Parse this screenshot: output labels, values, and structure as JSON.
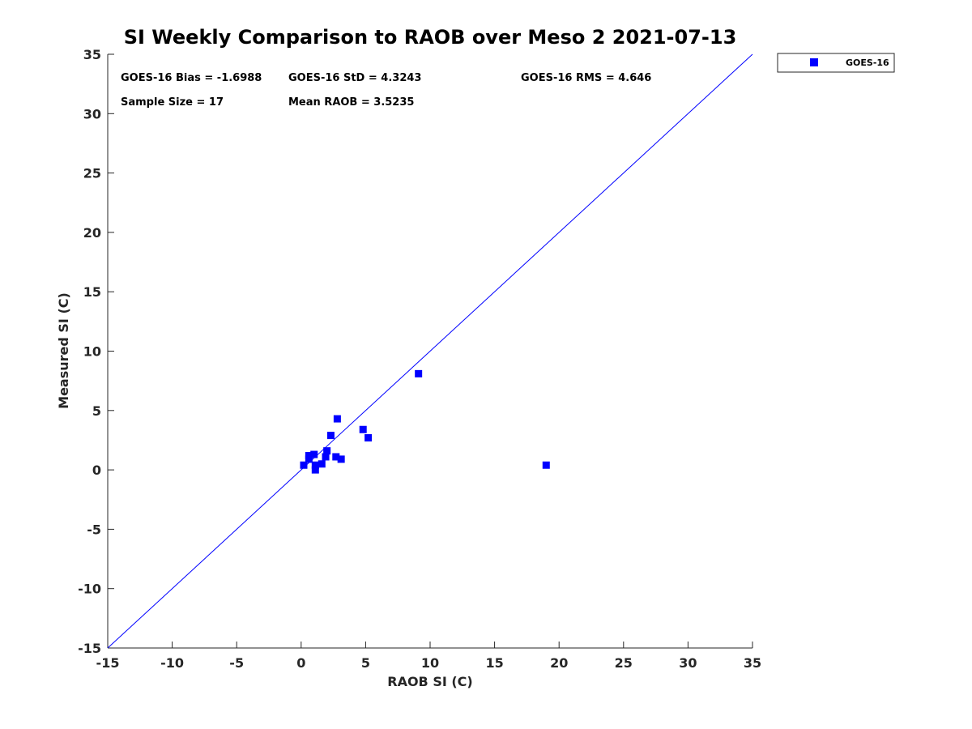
{
  "chart_data": {
    "type": "scatter",
    "title": "SI Weekly Comparison to RAOB over Meso 2 2021-07-13",
    "xlabel": "RAOB SI (C)",
    "ylabel": "Measured SI (C)",
    "xlim": [
      -15,
      35
    ],
    "ylim": [
      -15,
      35
    ],
    "xticks": [
      -15,
      -10,
      -5,
      0,
      5,
      10,
      15,
      20,
      25,
      30,
      35
    ],
    "yticks": [
      -15,
      -10,
      -5,
      0,
      5,
      10,
      15,
      20,
      25,
      30,
      35
    ],
    "grid": false,
    "reference_line": {
      "x": [
        -15,
        35
      ],
      "y": [
        -15,
        35
      ],
      "color": "#0000ff"
    },
    "series": [
      {
        "name": "GOES-16",
        "color": "#0000ff",
        "marker": "square",
        "points": [
          [
            0.2,
            0.4
          ],
          [
            0.6,
            0.9
          ],
          [
            0.6,
            1.2
          ],
          [
            1.0,
            1.3
          ],
          [
            1.1,
            0.0
          ],
          [
            1.1,
            0.4
          ],
          [
            1.6,
            0.5
          ],
          [
            1.9,
            1.1
          ],
          [
            2.0,
            1.6
          ],
          [
            2.3,
            2.9
          ],
          [
            2.7,
            1.1
          ],
          [
            2.8,
            4.3
          ],
          [
            3.1,
            0.9
          ],
          [
            4.8,
            3.4
          ],
          [
            5.2,
            2.7
          ],
          [
            9.1,
            8.1
          ],
          [
            19.0,
            0.4
          ]
        ]
      }
    ],
    "legend": {
      "position": "top-right-outside",
      "entries": [
        "GOES-16"
      ]
    },
    "annotations": {
      "bias": "GOES-16 Bias = -1.6988",
      "std": "GOES-16 StD = 4.3243",
      "rms": "GOES-16 RMS = 4.646",
      "sample_size": "Sample Size = 17",
      "mean_raob": "Mean RAOB = 3.5235"
    }
  }
}
